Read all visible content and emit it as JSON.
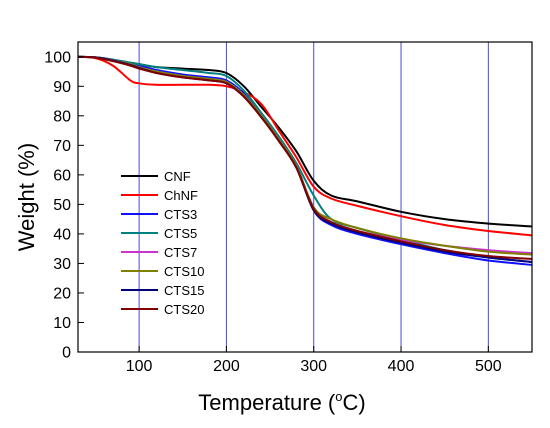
{
  "chart_data": {
    "type": "line",
    "xlabel": "Temperature (",
    "xlabel_sup": "o",
    "xlabel_suffix": "C)",
    "ylabel": "Weight (%)",
    "xlim": [
      30,
      550
    ],
    "ylim": [
      0,
      105
    ],
    "xticks": [
      100,
      200,
      300,
      400,
      500
    ],
    "yticks": [
      0,
      10,
      20,
      30,
      40,
      50,
      60,
      70,
      80,
      90,
      100
    ],
    "vertical_gridlines": [
      100,
      200,
      300,
      400,
      500
    ],
    "grid_color": "#4a4ad0",
    "legend_position": "left-middle",
    "x": [
      30,
      50,
      70,
      90,
      100,
      120,
      150,
      180,
      200,
      220,
      240,
      260,
      280,
      300,
      320,
      350,
      400,
      450,
      500,
      550
    ],
    "series": [
      {
        "name": "CNF",
        "color": "#000000",
        "values": [
          100,
          99.8,
          99,
          98,
          97.5,
          96.5,
          96,
          95.5,
          94.5,
          90,
          83,
          76,
          68,
          58,
          53,
          51,
          47.5,
          45,
          43.5,
          42.5
        ]
      },
      {
        "name": "ChNF",
        "color": "#ff0000",
        "values": [
          100,
          99.5,
          97,
          92,
          91,
          90.5,
          90.5,
          90.5,
          90,
          88,
          84,
          75,
          66,
          56,
          52,
          49.5,
          46,
          43,
          41,
          39.5
        ]
      },
      {
        "name": "CTS3",
        "color": "#1010ff",
        "values": [
          100,
          99.8,
          99,
          97.8,
          97,
          95.5,
          94,
          93,
          92,
          87.5,
          80,
          72,
          63,
          48,
          43,
          40,
          36.5,
          33.5,
          31,
          29.5
        ]
      },
      {
        "name": "CTS5",
        "color": "#008080",
        "values": [
          100,
          99.8,
          99,
          98,
          97.5,
          96.5,
          95.5,
          94.5,
          93.5,
          88.5,
          81,
          73,
          64,
          53,
          45,
          42,
          38,
          34.5,
          32,
          30.5
        ]
      },
      {
        "name": "CTS7",
        "color": "#cc33cc",
        "values": [
          100,
          99.8,
          98.8,
          97.5,
          96.5,
          95,
          93.5,
          92.5,
          91.5,
          87,
          80,
          72,
          63,
          49,
          44,
          41,
          38,
          36,
          34.5,
          33.5
        ]
      },
      {
        "name": "CTS10",
        "color": "#808000",
        "values": [
          100,
          99.8,
          98.8,
          97.5,
          96.5,
          95,
          93.5,
          92.5,
          91.5,
          87,
          80,
          72,
          63,
          49,
          45,
          42,
          38.5,
          36,
          34,
          33
        ]
      },
      {
        "name": "CTS15",
        "color": "#000080",
        "values": [
          100,
          99.8,
          98.7,
          97.2,
          96.2,
          94.5,
          93,
          92,
          91,
          86.5,
          79.5,
          71.5,
          62.5,
          48,
          43.5,
          40.5,
          37,
          34,
          32,
          30.5
        ]
      },
      {
        "name": "CTS20",
        "color": "#800000",
        "values": [
          100,
          99.7,
          98.5,
          97,
          96,
          94.5,
          93,
          92,
          91,
          86.5,
          79.5,
          71.5,
          62.5,
          48.5,
          44,
          41,
          37.5,
          34.5,
          32.5,
          31.5
        ]
      }
    ]
  }
}
